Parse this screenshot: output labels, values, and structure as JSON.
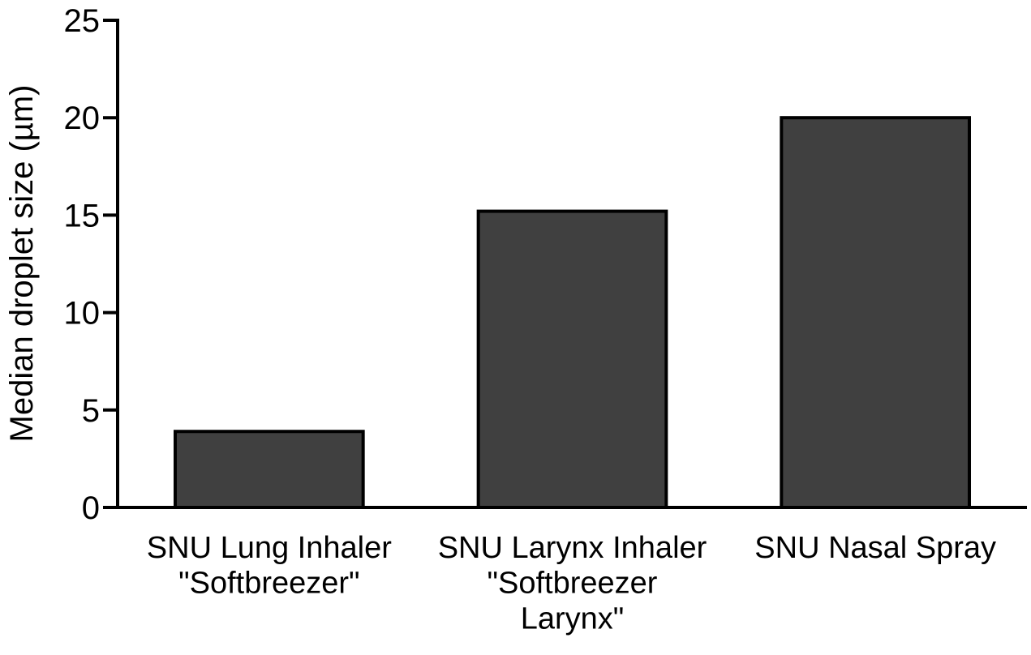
{
  "chart_data": {
    "type": "bar",
    "y_label": "Median droplet size (µm)",
    "categories": [
      "SNU Lung Inhaler\n\"Softbreezer\"",
      "SNU Larynx Inhaler\n\"Softbreezer\nLarynx\"",
      "SNU Nasal Spray"
    ],
    "values": [
      3.9,
      15.2,
      20
    ],
    "color": "#404040",
    "ylim": [
      0,
      25
    ],
    "yticks": [
      0,
      5,
      10,
      15,
      20,
      25
    ],
    "grid": false
  }
}
